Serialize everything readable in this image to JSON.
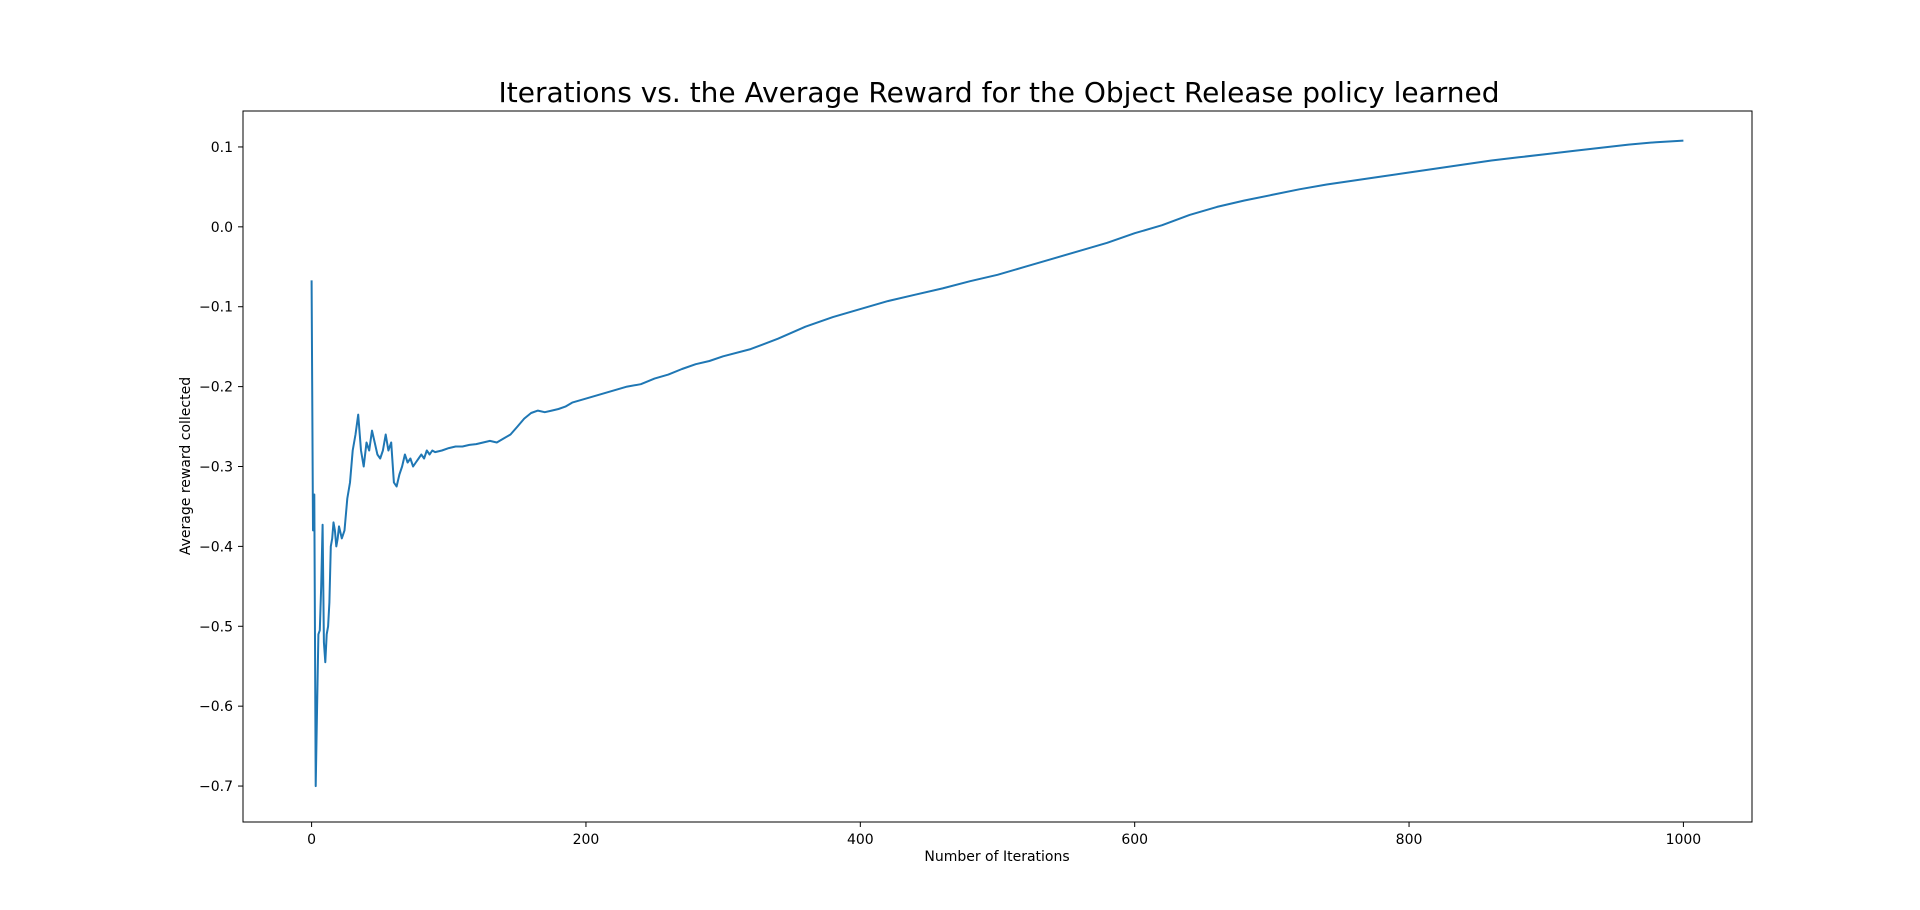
{
  "chart_data": {
    "type": "line",
    "title": "Iterations vs. the Average Reward for the Object Release policy learned",
    "xlabel": "Number of Iterations",
    "ylabel": "Average reward collected",
    "xlim": [
      -50,
      1050
    ],
    "ylim": [
      -0.745,
      0.145
    ],
    "xticks": [
      0,
      200,
      400,
      600,
      800,
      1000
    ],
    "xtick_labels": [
      "0",
      "200",
      "400",
      "600",
      "800",
      "1000"
    ],
    "yticks": [
      -0.7,
      -0.6,
      -0.5,
      -0.4,
      -0.3,
      -0.2,
      -0.1,
      0.0,
      0.1
    ],
    "ytick_labels": [
      "−0.7",
      "−0.6",
      "−0.5",
      "−0.4",
      "−0.3",
      "−0.2",
      "−0.1",
      "0.0",
      "0.1"
    ],
    "grid": false,
    "line_color": "#1f77b4",
    "x": [
      0,
      1,
      2,
      3,
      4,
      5,
      6,
      7,
      8,
      9,
      10,
      11,
      12,
      13,
      14,
      15,
      16,
      17,
      18,
      19,
      20,
      22,
      24,
      26,
      28,
      30,
      32,
      34,
      36,
      38,
      40,
      42,
      44,
      46,
      48,
      50,
      52,
      54,
      56,
      58,
      60,
      62,
      64,
      66,
      68,
      70,
      72,
      74,
      76,
      78,
      80,
      82,
      84,
      86,
      88,
      90,
      95,
      100,
      105,
      110,
      115,
      120,
      125,
      130,
      135,
      140,
      145,
      150,
      155,
      160,
      165,
      170,
      175,
      180,
      185,
      190,
      200,
      210,
      220,
      230,
      240,
      250,
      260,
      270,
      280,
      290,
      300,
      320,
      340,
      360,
      380,
      400,
      420,
      440,
      460,
      480,
      500,
      520,
      540,
      560,
      580,
      600,
      620,
      640,
      660,
      680,
      700,
      720,
      740,
      760,
      780,
      800,
      820,
      840,
      860,
      880,
      900,
      920,
      940,
      960,
      980,
      1000
    ],
    "values": [
      -0.067,
      -0.38,
      -0.335,
      -0.7,
      -0.6,
      -0.51,
      -0.505,
      -0.45,
      -0.373,
      -0.52,
      -0.545,
      -0.51,
      -0.5,
      -0.47,
      -0.4,
      -0.39,
      -0.37,
      -0.38,
      -0.4,
      -0.39,
      -0.375,
      -0.39,
      -0.38,
      -0.34,
      -0.32,
      -0.28,
      -0.26,
      -0.235,
      -0.28,
      -0.3,
      -0.27,
      -0.28,
      -0.255,
      -0.27,
      -0.285,
      -0.29,
      -0.28,
      -0.26,
      -0.28,
      -0.27,
      -0.32,
      -0.325,
      -0.31,
      -0.3,
      -0.285,
      -0.295,
      -0.29,
      -0.3,
      -0.295,
      -0.29,
      -0.285,
      -0.29,
      -0.28,
      -0.285,
      -0.28,
      -0.282,
      -0.28,
      -0.277,
      -0.275,
      -0.275,
      -0.273,
      -0.272,
      -0.27,
      -0.268,
      -0.27,
      -0.265,
      -0.26,
      -0.25,
      -0.24,
      -0.233,
      -0.23,
      -0.232,
      -0.23,
      -0.228,
      -0.225,
      -0.22,
      -0.215,
      -0.21,
      -0.205,
      -0.2,
      -0.197,
      -0.19,
      -0.185,
      -0.178,
      -0.172,
      -0.168,
      -0.162,
      -0.153,
      -0.14,
      -0.125,
      -0.113,
      -0.103,
      -0.093,
      -0.085,
      -0.077,
      -0.068,
      -0.06,
      -0.05,
      -0.04,
      -0.03,
      -0.02,
      -0.008,
      0.002,
      0.015,
      0.025,
      0.033,
      0.04,
      0.047,
      0.053,
      0.058,
      0.063,
      0.068,
      0.073,
      0.078,
      0.083,
      0.087,
      0.091,
      0.095,
      0.099,
      0.103,
      0.106,
      0.108
    ]
  }
}
